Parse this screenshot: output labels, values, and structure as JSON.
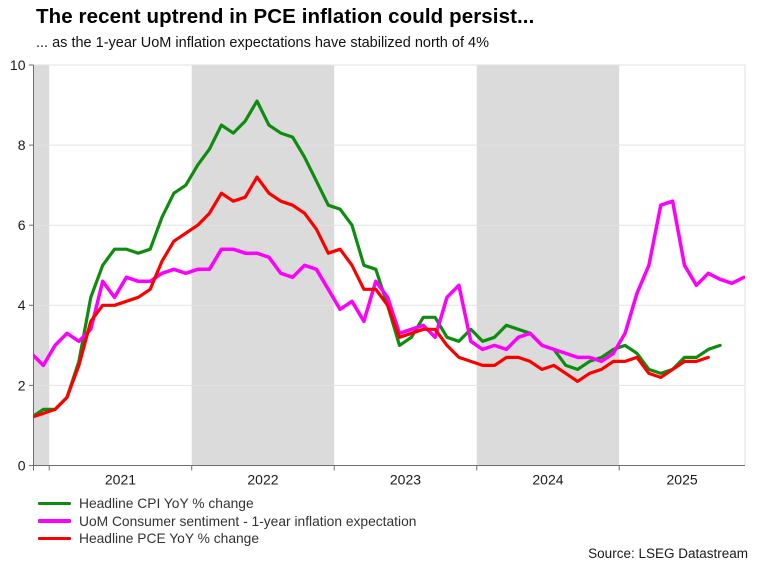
{
  "header": {
    "title": "The recent uptrend in PCE inflation could persist...",
    "subtitle": "... as the 1-year UoM inflation expectations have stabilized north of 4%"
  },
  "source": "Source: LSEG Datastream",
  "chart_data": {
    "type": "line",
    "title": "The recent uptrend in PCE inflation could persist...",
    "subtitle": "... as the 1-year UoM inflation expectations have stabilized north of 4%",
    "xlabel": "",
    "ylabel": "",
    "x_start": "2020-11",
    "x_interval": "monthly",
    "x_tick_labels": [
      "2021",
      "2022",
      "2023",
      "2024",
      "2025"
    ],
    "y_ticks": [
      0,
      2,
      4,
      6,
      8,
      10
    ],
    "ylim": [
      0,
      10
    ],
    "grid": "horizontal",
    "legend_position": "bottom-left",
    "shaded_bands_note": "alternating calendar years shaded gray: late-2020, 2022, 2024",
    "band_color": "#dbdbdb",
    "gridline_color": "#e2e2e2",
    "axis_color": "#6e6e6e",
    "series": [
      {
        "name": "Headline CPI YoY % change",
        "color": "#0e8c0e",
        "start": "2020-11",
        "values": [
          1.2,
          1.4,
          1.4,
          1.7,
          2.6,
          4.2,
          5.0,
          5.4,
          5.4,
          5.3,
          5.4,
          6.2,
          6.8,
          7.0,
          7.5,
          7.9,
          8.5,
          8.3,
          8.6,
          9.1,
          8.5,
          8.3,
          8.2,
          7.7,
          7.1,
          6.5,
          6.4,
          6.0,
          5.0,
          4.9,
          4.0,
          3.0,
          3.2,
          3.7,
          3.7,
          3.2,
          3.1,
          3.4,
          3.1,
          3.2,
          3.5,
          3.4,
          3.3,
          3.0,
          2.9,
          2.5,
          2.4,
          2.6,
          2.7,
          2.9,
          3.0,
          2.8,
          2.4,
          2.3,
          2.4,
          2.7,
          2.7,
          2.9,
          3.0
        ]
      },
      {
        "name": "UoM Consumer sentiment - 1-year inflation expectation",
        "color": "#fb00fb",
        "start": "2020-11",
        "values": [
          2.8,
          2.5,
          3.0,
          3.3,
          3.1,
          3.4,
          4.6,
          4.2,
          4.7,
          4.6,
          4.6,
          4.8,
          4.9,
          4.8,
          4.9,
          4.9,
          5.4,
          5.4,
          5.3,
          5.3,
          5.2,
          4.8,
          4.7,
          5.0,
          4.9,
          4.4,
          3.9,
          4.1,
          3.6,
          4.6,
          4.2,
          3.3,
          3.4,
          3.5,
          3.2,
          4.2,
          4.5,
          3.1,
          2.9,
          3.0,
          2.9,
          3.2,
          3.3,
          3.0,
          2.9,
          2.8,
          2.7,
          2.7,
          2.6,
          2.8,
          3.3,
          4.3,
          5.0,
          6.5,
          6.6,
          5.0,
          4.5,
          4.8,
          4.65,
          4.55,
          4.7
        ]
      },
      {
        "name": "Headline PCE YoY % change",
        "color": "#fc0000",
        "start": "2020-11",
        "values": [
          1.2,
          1.3,
          1.4,
          1.7,
          2.5,
          3.6,
          4.0,
          4.0,
          4.1,
          4.2,
          4.4,
          5.1,
          5.6,
          5.8,
          6.0,
          6.3,
          6.8,
          6.6,
          6.7,
          7.2,
          6.8,
          6.6,
          6.5,
          6.3,
          5.9,
          5.3,
          5.4,
          5.0,
          4.4,
          4.4,
          4.0,
          3.2,
          3.3,
          3.4,
          3.4,
          3.0,
          2.7,
          2.6,
          2.5,
          2.5,
          2.7,
          2.7,
          2.6,
          2.4,
          2.5,
          2.3,
          2.1,
          2.3,
          2.4,
          2.6,
          2.6,
          2.7,
          2.3,
          2.2,
          2.4,
          2.6,
          2.6,
          2.7
        ]
      }
    ]
  }
}
